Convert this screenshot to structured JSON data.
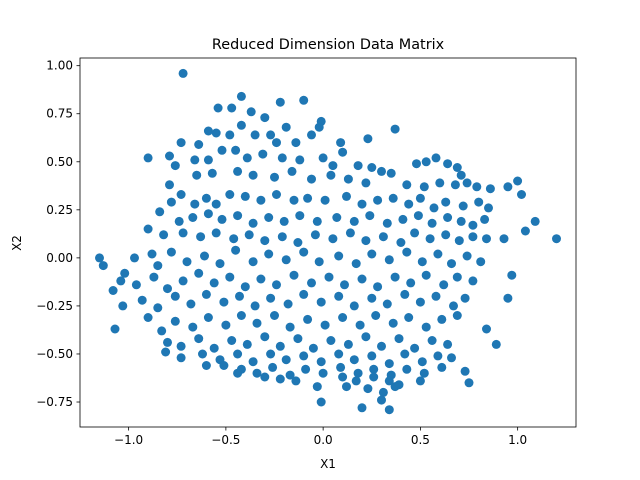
{
  "chart_data": {
    "type": "scatter",
    "title": "Reduced Dimension Data Matrix",
    "xlabel": "X1",
    "ylabel": "X2",
    "xlim": [
      -1.25,
      1.3
    ],
    "ylim": [
      -0.88,
      1.04
    ],
    "xticks": [
      -1.0,
      -0.5,
      0.0,
      0.5,
      1.0
    ],
    "xtick_labels": [
      "−1.0",
      "−0.5",
      "0.0",
      "0.5",
      "1.0"
    ],
    "yticks": [
      -0.75,
      -0.5,
      -0.25,
      0.0,
      0.25,
      0.5,
      0.75,
      1.0
    ],
    "ytick_labels": [
      "−0.75",
      "−0.50",
      "−0.25",
      "0.00",
      "0.25",
      "0.50",
      "0.75",
      "1.00"
    ],
    "grid": false,
    "marker_color": "#1f77b4",
    "series": [
      {
        "points": [
          [
            -0.72,
            0.96
          ],
          [
            -0.1,
            0.82
          ],
          [
            -0.22,
            0.81
          ],
          [
            -0.42,
            0.84
          ],
          [
            -0.47,
            0.78
          ],
          [
            -0.54,
            0.78
          ],
          [
            -0.37,
            0.76
          ],
          [
            -0.3,
            0.73
          ],
          [
            -0.42,
            0.69
          ],
          [
            -0.48,
            0.64
          ],
          [
            -0.55,
            0.65
          ],
          [
            -0.59,
            0.66
          ],
          [
            -0.19,
            0.68
          ],
          [
            -0.01,
            0.71
          ],
          [
            -0.02,
            0.68
          ],
          [
            -0.27,
            0.64
          ],
          [
            -0.35,
            0.64
          ],
          [
            -0.73,
            0.6
          ],
          [
            -0.64,
            0.59
          ],
          [
            -0.24,
            0.6
          ],
          [
            -0.14,
            0.6
          ],
          [
            -0.06,
            0.64
          ],
          [
            0.09,
            0.6
          ],
          [
            0.23,
            0.62
          ],
          [
            0.37,
            0.67
          ],
          [
            0.1,
            0.55
          ],
          [
            0.0,
            0.52
          ],
          [
            -0.45,
            0.56
          ],
          [
            -0.52,
            0.56
          ],
          [
            -0.9,
            0.52
          ],
          [
            -0.79,
            0.53
          ],
          [
            -0.76,
            0.48
          ],
          [
            -0.66,
            0.51
          ],
          [
            -0.59,
            0.51
          ],
          [
            -0.39,
            0.52
          ],
          [
            -0.31,
            0.54
          ],
          [
            -0.21,
            0.52
          ],
          [
            -0.12,
            0.51
          ],
          [
            0.05,
            0.48
          ],
          [
            0.18,
            0.48
          ],
          [
            0.25,
            0.47
          ],
          [
            0.3,
            0.45
          ],
          [
            0.35,
            0.44
          ],
          [
            0.48,
            0.49
          ],
          [
            0.53,
            0.5
          ],
          [
            0.58,
            0.52
          ],
          [
            0.64,
            0.49
          ],
          [
            0.69,
            0.47
          ],
          [
            0.71,
            0.43
          ],
          [
            -0.79,
            0.38
          ],
          [
            -0.73,
            0.33
          ],
          [
            -0.65,
            0.43
          ],
          [
            -0.57,
            0.44
          ],
          [
            -0.44,
            0.45
          ],
          [
            -0.36,
            0.43
          ],
          [
            -0.25,
            0.42
          ],
          [
            -0.16,
            0.45
          ],
          [
            -0.06,
            0.41
          ],
          [
            0.04,
            0.43
          ],
          [
            0.13,
            0.41
          ],
          [
            0.22,
            0.39
          ],
          [
            0.43,
            0.38
          ],
          [
            0.52,
            0.37
          ],
          [
            0.6,
            0.39
          ],
          [
            0.68,
            0.38
          ],
          [
            0.74,
            0.39
          ],
          [
            0.79,
            0.37
          ],
          [
            0.86,
            0.36
          ],
          [
            0.95,
            0.37
          ],
          [
            1.0,
            0.4
          ],
          [
            1.02,
            0.33
          ],
          [
            -0.84,
            0.24
          ],
          [
            -0.78,
            0.29
          ],
          [
            -0.66,
            0.28
          ],
          [
            -0.6,
            0.31
          ],
          [
            -0.55,
            0.28
          ],
          [
            -0.48,
            0.33
          ],
          [
            -0.4,
            0.32
          ],
          [
            -0.32,
            0.3
          ],
          [
            -0.24,
            0.33
          ],
          [
            -0.15,
            0.3
          ],
          [
            -0.08,
            0.31
          ],
          [
            0.01,
            0.3
          ],
          [
            0.12,
            0.32
          ],
          [
            0.2,
            0.28
          ],
          [
            0.28,
            0.3
          ],
          [
            0.36,
            0.31
          ],
          [
            0.44,
            0.28
          ],
          [
            0.5,
            0.31
          ],
          [
            0.57,
            0.26
          ],
          [
            0.63,
            0.29
          ],
          [
            0.72,
            0.27
          ],
          [
            0.8,
            0.29
          ],
          [
            0.85,
            0.26
          ],
          [
            -0.74,
            0.19
          ],
          [
            -0.67,
            0.21
          ],
          [
            -0.59,
            0.23
          ],
          [
            -0.52,
            0.2
          ],
          [
            -0.44,
            0.22
          ],
          [
            -0.36,
            0.18
          ],
          [
            -0.28,
            0.21
          ],
          [
            -0.2,
            0.19
          ],
          [
            -0.12,
            0.22
          ],
          [
            -0.03,
            0.19
          ],
          [
            0.07,
            0.21
          ],
          [
            0.16,
            0.19
          ],
          [
            0.24,
            0.22
          ],
          [
            0.33,
            0.18
          ],
          [
            0.41,
            0.2
          ],
          [
            0.49,
            0.22
          ],
          [
            0.56,
            0.18
          ],
          [
            0.64,
            0.21
          ],
          [
            0.71,
            0.19
          ],
          [
            0.77,
            0.17
          ],
          [
            0.83,
            0.2
          ],
          [
            1.09,
            0.19
          ],
          [
            1.04,
            0.14
          ],
          [
            -0.9,
            0.15
          ],
          [
            -0.82,
            0.12
          ],
          [
            -0.72,
            0.13
          ],
          [
            -0.63,
            0.11
          ],
          [
            -0.55,
            0.13
          ],
          [
            -0.46,
            0.1
          ],
          [
            -0.38,
            0.12
          ],
          [
            -0.3,
            0.09
          ],
          [
            -0.21,
            0.11
          ],
          [
            -0.13,
            0.08
          ],
          [
            -0.04,
            0.12
          ],
          [
            0.05,
            0.1
          ],
          [
            0.14,
            0.13
          ],
          [
            0.22,
            0.09
          ],
          [
            0.31,
            0.11
          ],
          [
            0.4,
            0.08
          ],
          [
            0.47,
            0.13
          ],
          [
            0.55,
            0.1
          ],
          [
            0.63,
            0.12
          ],
          [
            0.7,
            0.09
          ],
          [
            0.77,
            0.11
          ],
          [
            0.84,
            0.1
          ],
          [
            0.93,
            0.1
          ],
          [
            1.2,
            0.1
          ],
          [
            -1.15,
            0.0
          ],
          [
            -1.13,
            -0.04
          ],
          [
            -0.97,
            0.0
          ],
          [
            -1.02,
            -0.08
          ],
          [
            -0.88,
            0.02
          ],
          [
            -0.85,
            -0.04
          ],
          [
            -0.78,
            0.03
          ],
          [
            -0.7,
            -0.02
          ],
          [
            -0.61,
            0.01
          ],
          [
            -0.53,
            -0.03
          ],
          [
            -0.45,
            0.04
          ],
          [
            -0.36,
            -0.02
          ],
          [
            -0.28,
            0.02
          ],
          [
            -0.19,
            -0.01
          ],
          [
            -0.1,
            0.03
          ],
          [
            -0.02,
            -0.02
          ],
          [
            0.08,
            0.01
          ],
          [
            0.17,
            -0.03
          ],
          [
            0.25,
            0.02
          ],
          [
            0.34,
            -0.01
          ],
          [
            0.43,
            0.03
          ],
          [
            0.51,
            -0.02
          ],
          [
            0.59,
            0.02
          ],
          [
            0.66,
            -0.03
          ],
          [
            0.74,
            0.01
          ],
          [
            0.81,
            -0.02
          ],
          [
            -1.04,
            -0.12
          ],
          [
            -0.96,
            -0.14
          ],
          [
            -0.87,
            -0.1
          ],
          [
            -0.8,
            -0.16
          ],
          [
            -0.72,
            -0.12
          ],
          [
            -0.64,
            -0.08
          ],
          [
            -0.56,
            -0.13
          ],
          [
            -0.48,
            -0.1
          ],
          [
            -0.4,
            -0.15
          ],
          [
            -0.32,
            -0.11
          ],
          [
            -0.24,
            -0.14
          ],
          [
            -0.15,
            -0.09
          ],
          [
            -0.06,
            -0.13
          ],
          [
            0.03,
            -0.1
          ],
          [
            0.11,
            -0.14
          ],
          [
            0.2,
            -0.11
          ],
          [
            0.28,
            -0.15
          ],
          [
            0.37,
            -0.1
          ],
          [
            0.45,
            -0.13
          ],
          [
            0.53,
            -0.09
          ],
          [
            0.62,
            -0.14
          ],
          [
            0.69,
            -0.1
          ],
          [
            0.77,
            -0.12
          ],
          [
            0.97,
            -0.09
          ],
          [
            -1.08,
            -0.17
          ],
          [
            -1.03,
            -0.25
          ],
          [
            -0.93,
            -0.22
          ],
          [
            -0.85,
            -0.26
          ],
          [
            -0.76,
            -0.2
          ],
          [
            -0.68,
            -0.24
          ],
          [
            -0.6,
            -0.19
          ],
          [
            -0.51,
            -0.23
          ],
          [
            -0.43,
            -0.2
          ],
          [
            -0.35,
            -0.25
          ],
          [
            -0.27,
            -0.21
          ],
          [
            -0.18,
            -0.24
          ],
          [
            -0.1,
            -0.19
          ],
          [
            -0.01,
            -0.23
          ],
          [
            0.08,
            -0.2
          ],
          [
            0.16,
            -0.25
          ],
          [
            0.25,
            -0.21
          ],
          [
            0.33,
            -0.24
          ],
          [
            0.42,
            -0.19
          ],
          [
            0.5,
            -0.23
          ],
          [
            0.58,
            -0.2
          ],
          [
            0.67,
            -0.25
          ],
          [
            0.73,
            -0.21
          ],
          [
            0.95,
            -0.21
          ],
          [
            -1.07,
            -0.37
          ],
          [
            -0.9,
            -0.31
          ],
          [
            -0.83,
            -0.38
          ],
          [
            -0.76,
            -0.33
          ],
          [
            -0.67,
            -0.36
          ],
          [
            -0.59,
            -0.31
          ],
          [
            -0.5,
            -0.35
          ],
          [
            -0.42,
            -0.3
          ],
          [
            -0.34,
            -0.34
          ],
          [
            -0.25,
            -0.3
          ],
          [
            -0.17,
            -0.36
          ],
          [
            -0.08,
            -0.32
          ],
          [
            0.01,
            -0.35
          ],
          [
            0.1,
            -0.31
          ],
          [
            0.19,
            -0.35
          ],
          [
            0.27,
            -0.3
          ],
          [
            0.36,
            -0.34
          ],
          [
            0.44,
            -0.31
          ],
          [
            0.53,
            -0.36
          ],
          [
            0.61,
            -0.32
          ],
          [
            0.69,
            -0.3
          ],
          [
            0.84,
            -0.37
          ],
          [
            -0.8,
            -0.44
          ],
          [
            -0.73,
            -0.46
          ],
          [
            -0.64,
            -0.42
          ],
          [
            -0.56,
            -0.47
          ],
          [
            -0.47,
            -0.43
          ],
          [
            -0.39,
            -0.45
          ],
          [
            -0.3,
            -0.41
          ],
          [
            -0.22,
            -0.46
          ],
          [
            -0.13,
            -0.42
          ],
          [
            -0.05,
            -0.47
          ],
          [
            0.04,
            -0.43
          ],
          [
            0.13,
            -0.45
          ],
          [
            0.22,
            -0.41
          ],
          [
            0.3,
            -0.46
          ],
          [
            0.39,
            -0.42
          ],
          [
            0.47,
            -0.47
          ],
          [
            0.56,
            -0.43
          ],
          [
            0.64,
            -0.45
          ],
          [
            0.89,
            -0.45
          ],
          [
            -0.81,
            -0.49
          ],
          [
            -0.73,
            -0.52
          ],
          [
            -0.62,
            -0.5
          ],
          [
            -0.53,
            -0.53
          ],
          [
            -0.44,
            -0.5
          ],
          [
            -0.36,
            -0.54
          ],
          [
            -0.27,
            -0.5
          ],
          [
            -0.19,
            -0.53
          ],
          [
            -0.1,
            -0.51
          ],
          [
            -0.01,
            -0.54
          ],
          [
            0.08,
            -0.5
          ],
          [
            0.16,
            -0.53
          ],
          [
            0.25,
            -0.51
          ],
          [
            0.34,
            -0.55
          ],
          [
            0.42,
            -0.5
          ],
          [
            0.51,
            -0.54
          ],
          [
            0.59,
            -0.51
          ],
          [
            0.66,
            -0.52
          ],
          [
            -0.6,
            -0.56
          ],
          [
            -0.51,
            -0.56
          ],
          [
            -0.42,
            -0.58
          ],
          [
            -0.34,
            -0.6
          ],
          [
            -0.26,
            -0.57
          ],
          [
            -0.17,
            -0.61
          ],
          [
            -0.09,
            -0.58
          ],
          [
            0.0,
            -0.6
          ],
          [
            0.09,
            -0.57
          ],
          [
            0.18,
            -0.6
          ],
          [
            0.26,
            -0.58
          ],
          [
            0.35,
            -0.61
          ],
          [
            0.43,
            -0.58
          ],
          [
            0.52,
            -0.6
          ],
          [
            0.61,
            -0.57
          ],
          [
            0.73,
            -0.59
          ],
          [
            -0.44,
            -0.6
          ],
          [
            -0.3,
            -0.62
          ],
          [
            -0.22,
            -0.63
          ],
          [
            -0.14,
            -0.64
          ],
          [
            0.1,
            -0.62
          ],
          [
            0.17,
            -0.64
          ],
          [
            0.26,
            -0.62
          ],
          [
            0.34,
            -0.64
          ],
          [
            0.39,
            -0.66
          ],
          [
            0.5,
            -0.64
          ],
          [
            0.12,
            -0.67
          ],
          [
            -0.03,
            -0.67
          ],
          [
            0.23,
            -0.68
          ],
          [
            0.31,
            -0.7
          ],
          [
            0.37,
            -0.67
          ],
          [
            0.75,
            -0.65
          ],
          [
            0.3,
            -0.74
          ],
          [
            -0.01,
            -0.75
          ],
          [
            0.2,
            -0.78
          ],
          [
            0.34,
            -0.79
          ]
        ]
      }
    ]
  }
}
